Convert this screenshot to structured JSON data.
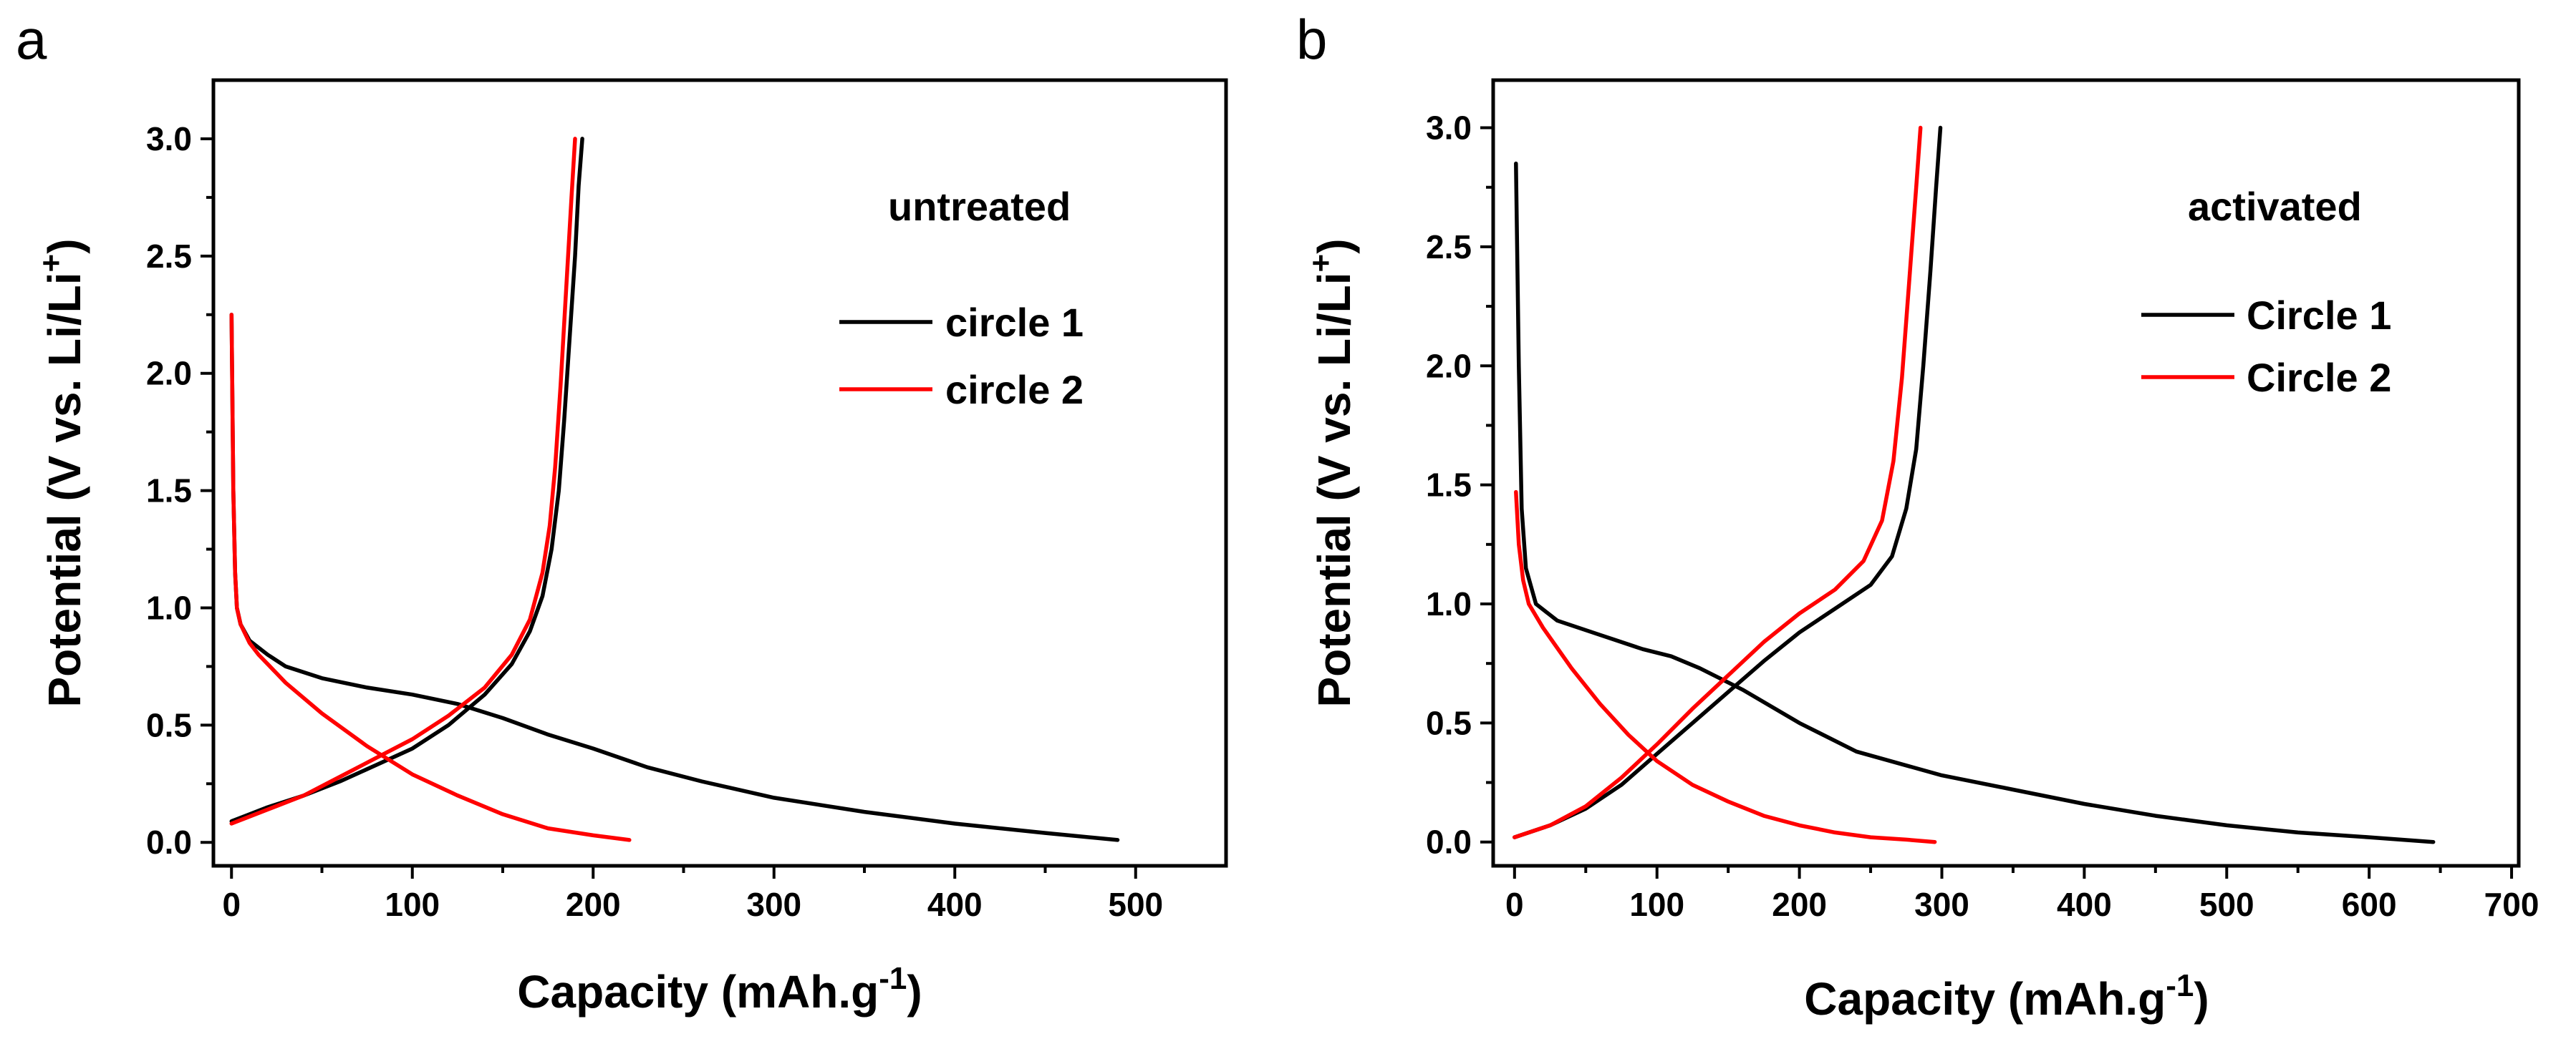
{
  "chart_data": [
    {
      "type": "line",
      "panel_label": "a",
      "annotation": "untreated",
      "xlabel": "Capacity",
      "xlabel_unit": "(mAh.g",
      "xlabel_sup": "-1",
      "xlabel_close": ")",
      "ylabel": "Potential",
      "ylabel_unit": "(V vs. Li/Li",
      "ylabel_sup": "+",
      "ylabel_close": ")",
      "xlim": [
        -10,
        550
      ],
      "ylim": [
        -0.1,
        3.25
      ],
      "xticks": [
        0,
        100,
        200,
        300,
        400,
        500
      ],
      "xtick_labels": [
        "0",
        "100",
        "200",
        "300",
        "400",
        "500"
      ],
      "yticks": [
        0.0,
        0.5,
        1.0,
        1.5,
        2.0,
        2.5,
        3.0
      ],
      "ytick_labels": [
        "0.0",
        "0.5",
        "1.0",
        "1.5",
        "2.0",
        "2.5",
        "3.0"
      ],
      "legend_position": "upper-right",
      "series": [
        {
          "name": "circle 1",
          "color": "#000000",
          "segments": [
            [
              [
                0,
                2.25
              ],
              [
                1,
                1.5
              ],
              [
                2,
                1.15
              ],
              [
                3,
                1.0
              ],
              [
                5,
                0.93
              ],
              [
                10,
                0.86
              ],
              [
                20,
                0.8
              ],
              [
                30,
                0.75
              ],
              [
                50,
                0.7
              ],
              [
                75,
                0.66
              ],
              [
                100,
                0.63
              ],
              [
                125,
                0.59
              ],
              [
                150,
                0.53
              ],
              [
                175,
                0.46
              ],
              [
                200,
                0.4
              ],
              [
                230,
                0.32
              ],
              [
                260,
                0.26
              ],
              [
                300,
                0.19
              ],
              [
                350,
                0.13
              ],
              [
                400,
                0.08
              ],
              [
                450,
                0.04
              ],
              [
                490,
                0.01
              ]
            ],
            [
              [
                0,
                0.09
              ],
              [
                10,
                0.12
              ],
              [
                20,
                0.15
              ],
              [
                40,
                0.2
              ],
              [
                60,
                0.26
              ],
              [
                80,
                0.33
              ],
              [
                100,
                0.4
              ],
              [
                120,
                0.5
              ],
              [
                140,
                0.63
              ],
              [
                155,
                0.76
              ],
              [
                165,
                0.9
              ],
              [
                172,
                1.05
              ],
              [
                177,
                1.25
              ],
              [
                181,
                1.5
              ],
              [
                184,
                1.8
              ],
              [
                187,
                2.15
              ],
              [
                190,
                2.5
              ],
              [
                192,
                2.8
              ],
              [
                194,
                3.0
              ]
            ]
          ]
        },
        {
          "name": "circle 2",
          "color": "#ff0000",
          "segments": [
            [
              [
                0,
                2.25
              ],
              [
                1,
                1.5
              ],
              [
                2,
                1.15
              ],
              [
                3,
                1.0
              ],
              [
                5,
                0.93
              ],
              [
                10,
                0.85
              ],
              [
                15,
                0.8
              ],
              [
                20,
                0.76
              ],
              [
                30,
                0.68
              ],
              [
                50,
                0.55
              ],
              [
                75,
                0.41
              ],
              [
                100,
                0.29
              ],
              [
                125,
                0.2
              ],
              [
                150,
                0.12
              ],
              [
                175,
                0.06
              ],
              [
                200,
                0.03
              ],
              [
                220,
                0.01
              ]
            ],
            [
              [
                0,
                0.08
              ],
              [
                20,
                0.14
              ],
              [
                40,
                0.2
              ],
              [
                60,
                0.28
              ],
              [
                80,
                0.36
              ],
              [
                100,
                0.44
              ],
              [
                120,
                0.54
              ],
              [
                140,
                0.66
              ],
              [
                155,
                0.8
              ],
              [
                165,
                0.95
              ],
              [
                172,
                1.15
              ],
              [
                176,
                1.35
              ],
              [
                179,
                1.6
              ],
              [
                182,
                1.95
              ],
              [
                185,
                2.35
              ],
              [
                188,
                2.75
              ],
              [
                190,
                3.0
              ]
            ]
          ]
        }
      ]
    },
    {
      "type": "line",
      "panel_label": "b",
      "annotation": "activated",
      "xlabel": "Capacity",
      "xlabel_unit": "(mAh.g",
      "xlabel_sup": "-1",
      "xlabel_close": ")",
      "ylabel": "Potential",
      "ylabel_unit": "(V vs. Li/Li",
      "ylabel_sup": "+",
      "ylabel_close": ")",
      "xlim": [
        -15,
        705
      ],
      "ylim": [
        -0.1,
        3.2
      ],
      "xticks": [
        0,
        100,
        200,
        300,
        400,
        500,
        600,
        700
      ],
      "xtick_labels": [
        "0",
        "100",
        "200",
        "300",
        "400",
        "500",
        "600",
        "700"
      ],
      "yticks": [
        0.0,
        0.5,
        1.0,
        1.5,
        2.0,
        2.5,
        3.0
      ],
      "ytick_labels": [
        "0.0",
        "0.5",
        "1.0",
        "1.5",
        "2.0",
        "2.5",
        "3.0"
      ],
      "legend_position": "upper-right",
      "series": [
        {
          "name": "Circle 1",
          "color": "#000000",
          "segments": [
            [
              [
                1,
                2.85
              ],
              [
                3,
                2.0
              ],
              [
                5,
                1.4
              ],
              [
                8,
                1.15
              ],
              [
                15,
                1.0
              ],
              [
                30,
                0.93
              ],
              [
                60,
                0.87
              ],
              [
                90,
                0.81
              ],
              [
                110,
                0.78
              ],
              [
                130,
                0.73
              ],
              [
                160,
                0.64
              ],
              [
                200,
                0.5
              ],
              [
                240,
                0.38
              ],
              [
                300,
                0.28
              ],
              [
                350,
                0.22
              ],
              [
                400,
                0.16
              ],
              [
                450,
                0.11
              ],
              [
                500,
                0.07
              ],
              [
                550,
                0.04
              ],
              [
                600,
                0.02
              ],
              [
                645,
                0.0
              ]
            ],
            [
              [
                0,
                0.02
              ],
              [
                25,
                0.07
              ],
              [
                50,
                0.14
              ],
              [
                75,
                0.24
              ],
              [
                100,
                0.37
              ],
              [
                125,
                0.5
              ],
              [
                150,
                0.63
              ],
              [
                175,
                0.76
              ],
              [
                200,
                0.88
              ],
              [
                225,
                0.98
              ],
              [
                250,
                1.08
              ],
              [
                265,
                1.2
              ],
              [
                275,
                1.4
              ],
              [
                282,
                1.65
              ],
              [
                287,
                2.0
              ],
              [
                292,
                2.4
              ],
              [
                296,
                2.75
              ],
              [
                299,
                3.0
              ]
            ]
          ]
        },
        {
          "name": "Circle 2",
          "color": "#ff0000",
          "segments": [
            [
              [
                1,
                1.47
              ],
              [
                3,
                1.25
              ],
              [
                6,
                1.1
              ],
              [
                10,
                1.0
              ],
              [
                20,
                0.9
              ],
              [
                40,
                0.73
              ],
              [
                60,
                0.58
              ],
              [
                80,
                0.45
              ],
              [
                100,
                0.34
              ],
              [
                125,
                0.24
              ],
              [
                150,
                0.17
              ],
              [
                175,
                0.11
              ],
              [
                200,
                0.07
              ],
              [
                225,
                0.04
              ],
              [
                250,
                0.02
              ],
              [
                275,
                0.01
              ],
              [
                295,
                0.0
              ]
            ],
            [
              [
                0,
                0.02
              ],
              [
                25,
                0.07
              ],
              [
                50,
                0.15
              ],
              [
                75,
                0.27
              ],
              [
                100,
                0.41
              ],
              [
                125,
                0.56
              ],
              [
                150,
                0.7
              ],
              [
                175,
                0.84
              ],
              [
                200,
                0.96
              ],
              [
                225,
                1.06
              ],
              [
                245,
                1.18
              ],
              [
                258,
                1.35
              ],
              [
                266,
                1.6
              ],
              [
                272,
                1.95
              ],
              [
                277,
                2.35
              ],
              [
                282,
                2.75
              ],
              [
                285,
                3.0
              ]
            ]
          ]
        }
      ]
    }
  ]
}
